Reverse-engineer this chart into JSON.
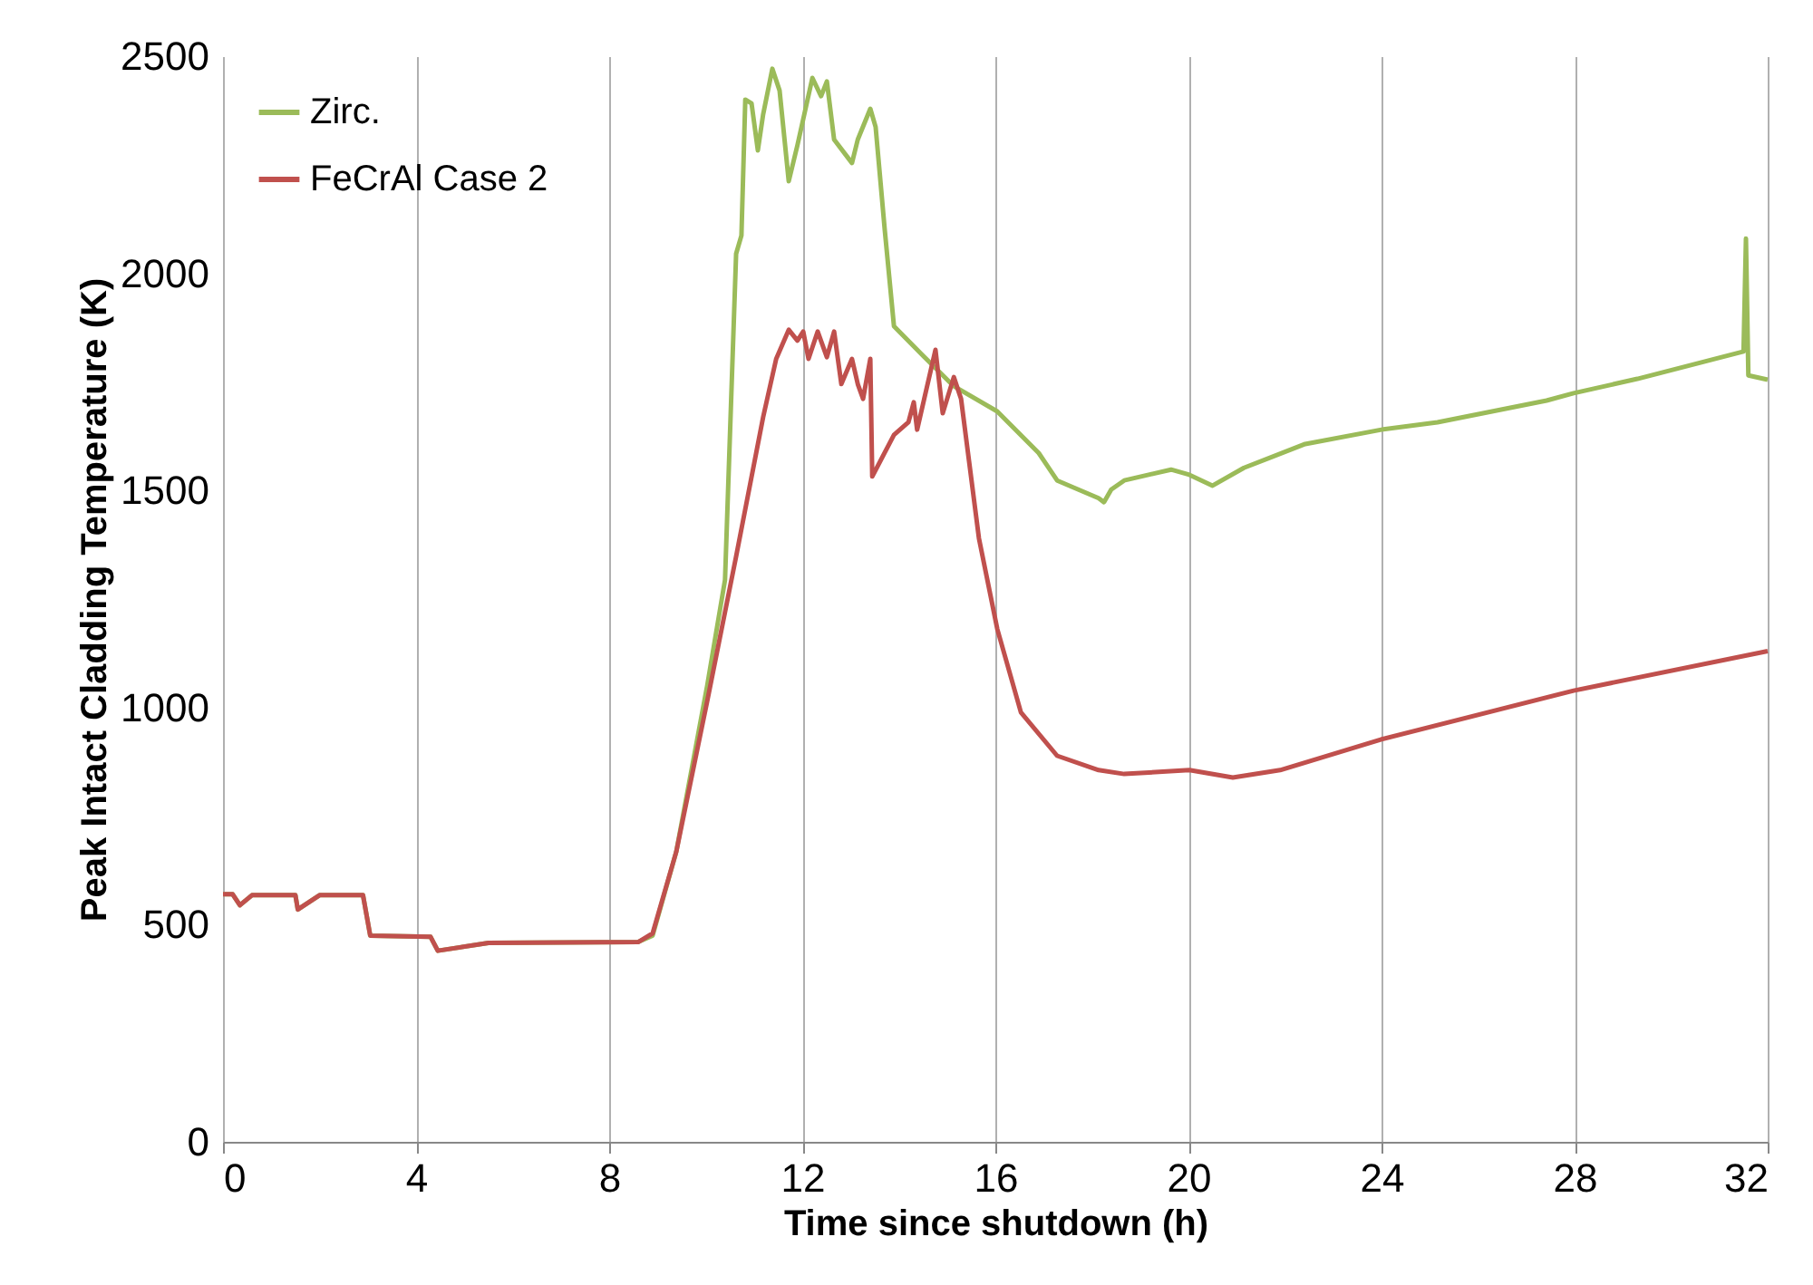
{
  "chart_data": {
    "type": "line",
    "xlabel": "Time since shutdown (h)",
    "ylabel": "Peak Intact Cladding Temperature (K)",
    "xlim": [
      0,
      32
    ],
    "xticks": [
      0,
      4,
      8,
      12,
      16,
      20,
      24,
      28,
      32
    ],
    "ylim": [
      0,
      2500
    ],
    "yticks": [
      0,
      500,
      1000,
      1500,
      2000,
      2500
    ],
    "grid": "x",
    "legend": "top left",
    "line_style": "solid",
    "marker": "none",
    "series": [
      {
        "name": "Zirc.",
        "color": "#9bbb59",
        "x": [
          0,
          0.2,
          0.35,
          0.6,
          1.5,
          1.55,
          2.0,
          2.9,
          3.05,
          4.3,
          4.45,
          5.5,
          8.6,
          8.9,
          9.39,
          10.03,
          10.4,
          10.63,
          10.74,
          10.82,
          10.95,
          11.08,
          11.19,
          11.38,
          11.53,
          11.72,
          11.9,
          12.21,
          12.39,
          12.51,
          12.66,
          13.03,
          13.15,
          13.41,
          13.52,
          13.71,
          13.9,
          14.53,
          15.14,
          16.04,
          16.9,
          17.28,
          18.14,
          18.25,
          18.4,
          18.67,
          19.64,
          20.02,
          20.5,
          21.15,
          22.42,
          24,
          25.16,
          27.42,
          27.98,
          29.3,
          31.5,
          31.55,
          31.6,
          32
        ],
        "values": [
          570,
          570,
          545,
          568,
          568,
          535,
          568,
          568,
          475,
          472,
          440,
          458,
          460,
          475,
          668,
          1050,
          1294,
          2045,
          2087,
          2400,
          2391,
          2283,
          2366,
          2471,
          2421,
          2212,
          2295,
          2450,
          2408,
          2442,
          2308,
          2254,
          2308,
          2379,
          2337,
          2099,
          1878,
          1807,
          1740,
          1682,
          1586,
          1523,
          1482,
          1473,
          1502,
          1523,
          1548,
          1536,
          1511,
          1552,
          1607,
          1640,
          1657,
          1707,
          1724,
          1757,
          1820,
          2080,
          1765,
          1755
        ]
      },
      {
        "name": "FeCrAl Case 2",
        "color": "#c0504d",
        "x": [
          0,
          0.2,
          0.35,
          0.6,
          1.5,
          1.55,
          2.0,
          2.9,
          3.05,
          4.3,
          4.45,
          5.5,
          8.6,
          8.9,
          9.39,
          10.03,
          10.63,
          11.19,
          11.46,
          11.72,
          11.9,
          12.02,
          12.13,
          12.32,
          12.51,
          12.66,
          12.81,
          13.03,
          13.15,
          13.26,
          13.41,
          13.45,
          13.9,
          14.2,
          14.31,
          14.38,
          14.76,
          14.91,
          15.14,
          15.29,
          15.66,
          16.04,
          16.53,
          17.28,
          18.14,
          18.67,
          20.02,
          20.92,
          21.9,
          24,
          27.98,
          32
        ],
        "values": [
          570,
          570,
          545,
          568,
          568,
          535,
          568,
          568,
          475,
          472,
          440,
          458,
          460,
          480,
          668,
          1014,
          1348,
          1669,
          1803,
          1870,
          1845,
          1866,
          1803,
          1866,
          1807,
          1866,
          1745,
          1803,
          1745,
          1711,
          1803,
          1532,
          1628,
          1657,
          1703,
          1640,
          1824,
          1678,
          1761,
          1711,
          1390,
          1181,
          989,
          889,
          856,
          847,
          856,
          839,
          856,
          927,
          1039,
          1130
        ]
      }
    ]
  }
}
